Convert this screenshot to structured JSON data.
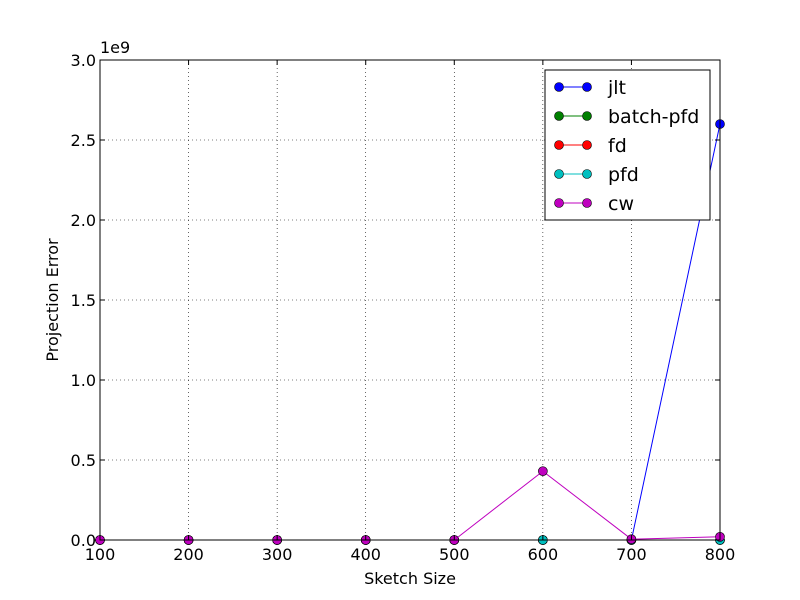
{
  "chart_data": {
    "type": "line",
    "title": "",
    "xlabel": "Sketch Size",
    "ylabel": "Projection Error",
    "y_offset_label": "1e9",
    "xlim": [
      100,
      800
    ],
    "ylim": [
      0,
      3.0
    ],
    "y_multiplier": 1000000000,
    "grid": true,
    "legend_position": "top-right",
    "x_ticks": [
      "100",
      "200",
      "300",
      "400",
      "500",
      "600",
      "700",
      "800"
    ],
    "y_ticks": [
      "0.0",
      "0.5",
      "1.0",
      "1.5",
      "2.0",
      "2.5",
      "3.0"
    ],
    "x": [
      100,
      200,
      300,
      400,
      500,
      600,
      700,
      800
    ],
    "series": [
      {
        "name": "jlt",
        "color": "#0000ff",
        "values": [
          0,
          0,
          0,
          0,
          0,
          0,
          0,
          2.6
        ]
      },
      {
        "name": "batch-pfd",
        "color": "#008000",
        "values": [
          0,
          0,
          0,
          0,
          0,
          0,
          0,
          0
        ]
      },
      {
        "name": "fd",
        "color": "#ff0000",
        "values": [
          0,
          0,
          0,
          0,
          0,
          0,
          0,
          0
        ]
      },
      {
        "name": "pfd",
        "color": "#00bfbf",
        "values": [
          0,
          0,
          0,
          0,
          0,
          0,
          0,
          0
        ]
      },
      {
        "name": "cw",
        "color": "#bf00bf",
        "values": [
          0,
          0,
          0,
          0,
          0,
          0.43,
          0.005,
          0.02
        ]
      }
    ]
  }
}
